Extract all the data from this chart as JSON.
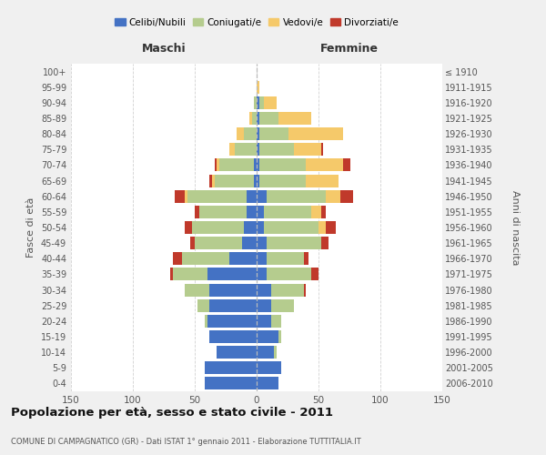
{
  "age_groups": [
    "0-4",
    "5-9",
    "10-14",
    "15-19",
    "20-24",
    "25-29",
    "30-34",
    "35-39",
    "40-44",
    "45-49",
    "50-54",
    "55-59",
    "60-64",
    "65-69",
    "70-74",
    "75-79",
    "80-84",
    "85-89",
    "90-94",
    "95-99",
    "100+"
  ],
  "birth_years": [
    "2006-2010",
    "2001-2005",
    "1996-2000",
    "1991-1995",
    "1986-1990",
    "1981-1985",
    "1976-1980",
    "1971-1975",
    "1966-1970",
    "1961-1965",
    "1956-1960",
    "1951-1955",
    "1946-1950",
    "1941-1945",
    "1936-1940",
    "1931-1935",
    "1926-1930",
    "1921-1925",
    "1916-1920",
    "1911-1915",
    "≤ 1910"
  ],
  "maschi": {
    "celibi": [
      42,
      42,
      32,
      38,
      40,
      38,
      38,
      40,
      22,
      12,
      10,
      8,
      8,
      2,
      2,
      0,
      0,
      0,
      0,
      0,
      0
    ],
    "coniugati": [
      0,
      0,
      0,
      0,
      2,
      10,
      20,
      28,
      38,
      38,
      42,
      38,
      48,
      32,
      28,
      18,
      10,
      4,
      2,
      0,
      0
    ],
    "vedovi": [
      0,
      0,
      0,
      0,
      0,
      0,
      0,
      0,
      0,
      0,
      0,
      0,
      2,
      2,
      2,
      4,
      6,
      2,
      0,
      0,
      0
    ],
    "divorziati": [
      0,
      0,
      0,
      0,
      0,
      0,
      0,
      2,
      8,
      4,
      6,
      4,
      8,
      2,
      2,
      0,
      0,
      0,
      0,
      0,
      0
    ]
  },
  "femmine": {
    "nubili": [
      18,
      20,
      14,
      18,
      12,
      12,
      12,
      8,
      8,
      8,
      6,
      6,
      8,
      2,
      2,
      2,
      2,
      2,
      2,
      0,
      0
    ],
    "coniugate": [
      0,
      0,
      2,
      2,
      8,
      18,
      26,
      36,
      30,
      44,
      44,
      38,
      48,
      38,
      38,
      28,
      24,
      16,
      4,
      0,
      0
    ],
    "vedove": [
      0,
      0,
      0,
      0,
      0,
      0,
      0,
      0,
      0,
      0,
      6,
      8,
      12,
      26,
      30,
      22,
      44,
      26,
      10,
      2,
      0
    ],
    "divorziate": [
      0,
      0,
      0,
      0,
      0,
      0,
      2,
      6,
      4,
      6,
      8,
      4,
      10,
      0,
      6,
      2,
      0,
      0,
      0,
      0,
      0
    ]
  },
  "colors": {
    "celibi": "#4472C4",
    "coniugati": "#B5CC8E",
    "vedovi": "#F5C96A",
    "divorziati": "#C0392B"
  },
  "xlim": 150,
  "title": "Popolazione per età, sesso e stato civile - 2011",
  "subtitle": "COMUNE DI CAMPAGNATICO (GR) - Dati ISTAT 1° gennaio 2011 - Elaborazione TUTTITALIA.IT",
  "ylabel_left": "Fasce di età",
  "ylabel_right": "Anni di nascita",
  "xlabel_maschi": "Maschi",
  "xlabel_femmine": "Femmine",
  "bg_color": "#f0f0f0",
  "plot_bg": "#ffffff",
  "grid_color": "#cccccc"
}
